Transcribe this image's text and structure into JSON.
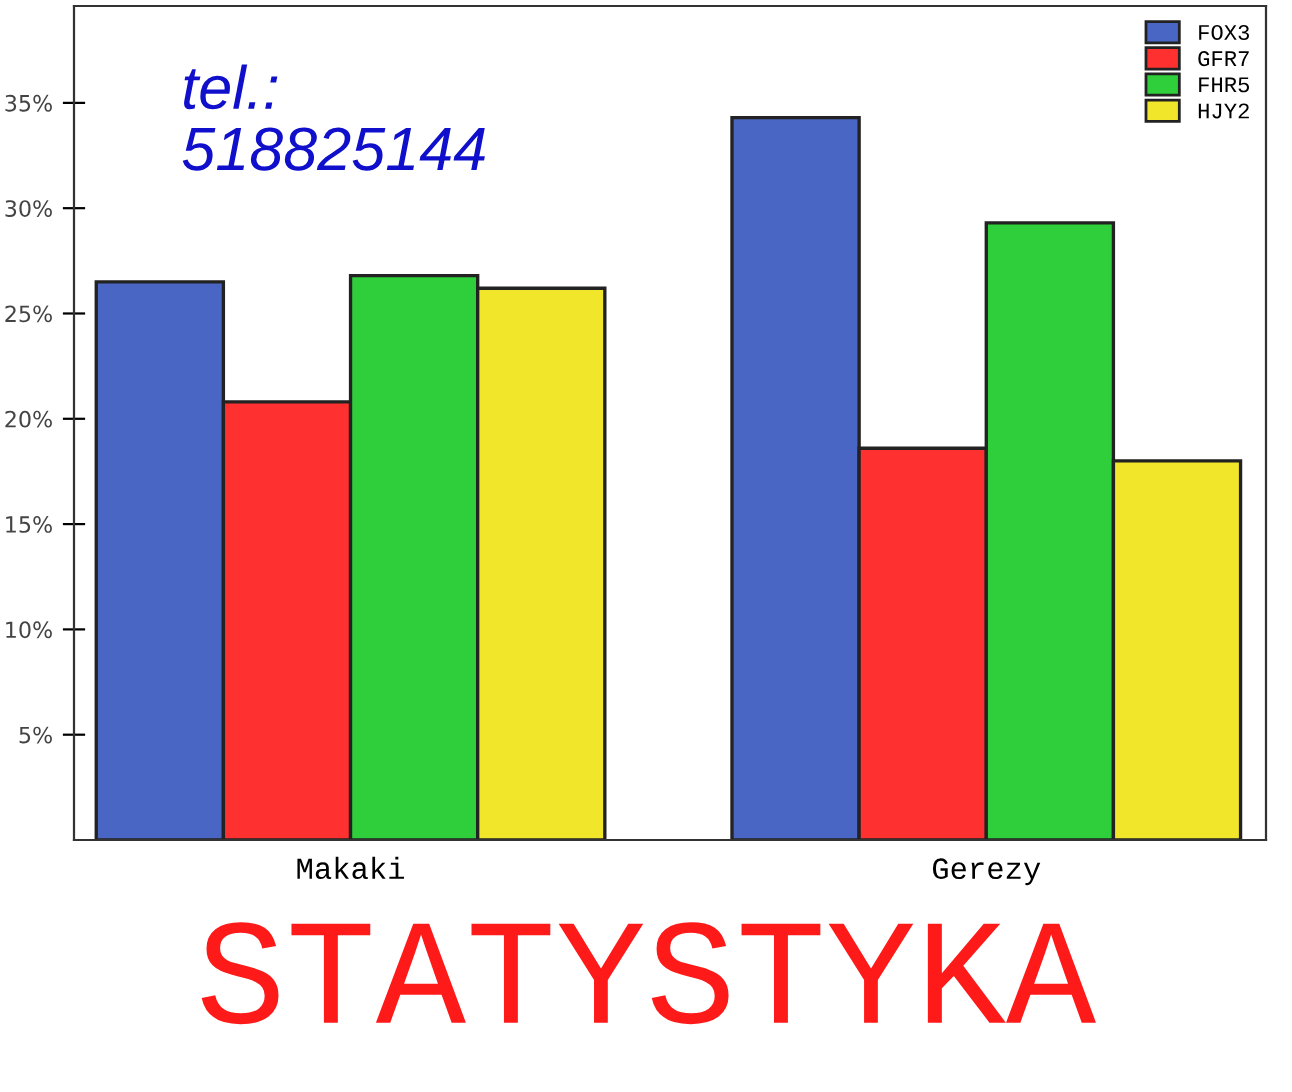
{
  "chart_data": {
    "type": "bar",
    "title": "STATYSTYKA",
    "annotations": [
      "tel.:\n518825144"
    ],
    "categories": [
      "Makaki",
      "Gerezy"
    ],
    "series": [
      {
        "name": "FOX3",
        "color": "#4a66c4",
        "values": [
          26.5,
          34.3
        ]
      },
      {
        "name": "GFR7",
        "color": "#ff3030",
        "values": [
          20.8,
          18.6
        ]
      },
      {
        "name": "FHR5",
        "color": "#2ecf3a",
        "values": [
          26.8,
          29.3
        ]
      },
      {
        "name": "HJY2",
        "color": "#f2e62a",
        "values": [
          26.2,
          18.0
        ]
      }
    ],
    "ylim": [
      0,
      39.6
    ],
    "yticks": [
      {
        "value": 5,
        "label": "5%"
      },
      {
        "value": 10,
        "label": "10%"
      },
      {
        "value": 15,
        "label": "15%"
      },
      {
        "value": 20,
        "label": "20%"
      },
      {
        "value": 25,
        "label": "25%"
      },
      {
        "value": 30,
        "label": "30%"
      },
      {
        "value": 35,
        "label": "35%"
      }
    ],
    "grid": false,
    "legend": "top right"
  }
}
